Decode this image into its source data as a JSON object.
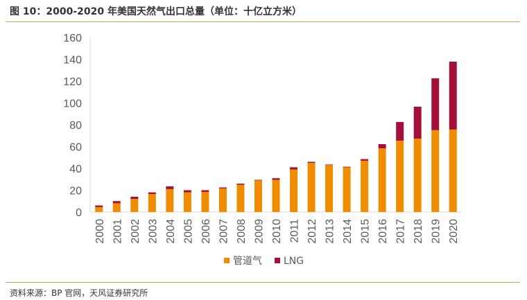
{
  "title": "图 10：2000-2020 年美国天然气出口总量（单位：十亿立方米）",
  "source": "资料来源：BP 官网，天风证券研究所",
  "chart_data": {
    "type": "bar",
    "stacked": true,
    "categories": [
      "2000",
      "2001",
      "2002",
      "2003",
      "2004",
      "2005",
      "2006",
      "2007",
      "2008",
      "2009",
      "2010",
      "2011",
      "2012",
      "2013",
      "2014",
      "2015",
      "2016",
      "2017",
      "2018",
      "2019",
      "2020"
    ],
    "series": [
      {
        "name": "管道气",
        "color": "#f08c00",
        "values": [
          4.5,
          8,
          12,
          16.5,
          21,
          18,
          18.3,
          21.6,
          25,
          29,
          29.5,
          39,
          45,
          43,
          41,
          47,
          58.4,
          65.4,
          67.3,
          75,
          75.6
        ]
      },
      {
        "name": "LNG",
        "color": "#a50f3c",
        "values": [
          1.5,
          2,
          2,
          1.5,
          2.5,
          2,
          1.7,
          0.9,
          1,
          0.5,
          1.5,
          2,
          1,
          0.5,
          0.5,
          1.5,
          3.8,
          17.1,
          29.2,
          47.5,
          62.2
        ]
      }
    ],
    "ylim": [
      0,
      160
    ],
    "yticks": [
      0,
      20,
      40,
      60,
      80,
      100,
      120,
      140,
      160
    ],
    "grid": false,
    "legend": "bottom"
  }
}
